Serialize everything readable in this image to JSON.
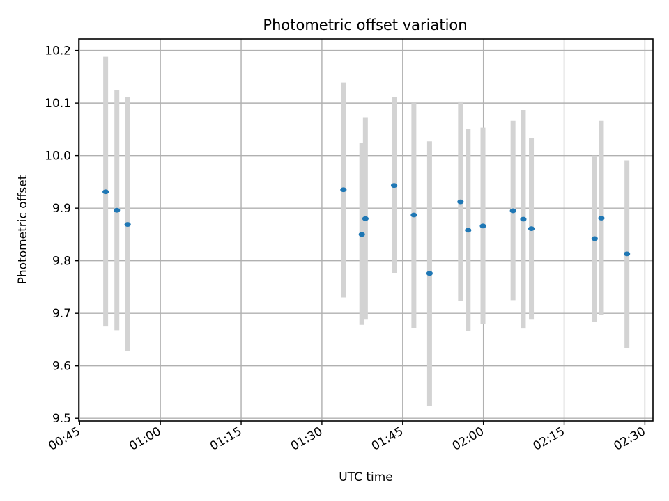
{
  "chart_data": {
    "type": "scatter",
    "title": "Photometric offset variation",
    "xlabel": "UTC time",
    "ylabel": "Photometric offset",
    "x_ticks": [
      "00:45",
      "01:00",
      "01:15",
      "01:30",
      "01:45",
      "02:00",
      "02:15",
      "02:30"
    ],
    "y_ticks": [
      "9.5",
      "9.6",
      "9.7",
      "9.8",
      "9.9",
      "10.0",
      "10.1",
      "10.2"
    ],
    "xlim": [
      "00:44:50",
      "02:31:30"
    ],
    "ylim": [
      9.495,
      10.222
    ],
    "grid": true,
    "marker_color": "#1f77b4",
    "errorbar_color": "#d3d3d3",
    "points": [
      {
        "x": "00:49:50",
        "y": 9.931,
        "low": 9.675,
        "high": 10.188
      },
      {
        "x": "00:51:55",
        "y": 9.896,
        "low": 9.668,
        "high": 10.125
      },
      {
        "x": "00:53:55",
        "y": 9.869,
        "low": 9.628,
        "high": 10.111
      },
      {
        "x": "01:34:00",
        "y": 9.935,
        "low": 9.73,
        "high": 10.139
      },
      {
        "x": "01:37:25",
        "y": 9.85,
        "low": 9.678,
        "high": 10.024
      },
      {
        "x": "01:38:05",
        "y": 9.88,
        "low": 9.688,
        "high": 10.073
      },
      {
        "x": "01:43:25",
        "y": 9.943,
        "low": 9.776,
        "high": 10.112
      },
      {
        "x": "01:47:05",
        "y": 9.887,
        "low": 9.672,
        "high": 10.1
      },
      {
        "x": "01:50:00",
        "y": 9.776,
        "low": 9.523,
        "high": 10.027
      },
      {
        "x": "01:55:45",
        "y": 9.912,
        "low": 9.723,
        "high": 10.103
      },
      {
        "x": "01:57:10",
        "y": 9.858,
        "low": 9.666,
        "high": 10.05
      },
      {
        "x": "01:59:55",
        "y": 9.866,
        "low": 9.679,
        "high": 10.053
      },
      {
        "x": "02:05:30",
        "y": 9.895,
        "low": 9.725,
        "high": 10.066
      },
      {
        "x": "02:07:25",
        "y": 9.879,
        "low": 9.671,
        "high": 10.087
      },
      {
        "x": "02:08:55",
        "y": 9.861,
        "low": 9.688,
        "high": 10.034
      },
      {
        "x": "02:20:40",
        "y": 9.842,
        "low": 9.683,
        "high": 10.0
      },
      {
        "x": "02:21:55",
        "y": 9.881,
        "low": 9.697,
        "high": 10.066
      },
      {
        "x": "02:26:40",
        "y": 9.813,
        "low": 9.634,
        "high": 9.991
      }
    ]
  }
}
